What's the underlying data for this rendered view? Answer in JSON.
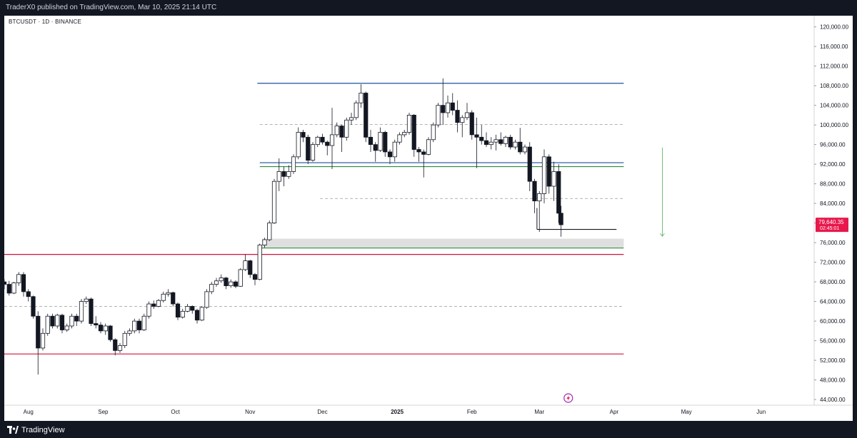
{
  "header": {
    "text": "TraderX0 published on TradingView.com, Mar 10, 2025 21:14 UTC"
  },
  "symbol": "BTCUSDT · 1D · BINANCE",
  "footer": {
    "brand": "TradingView"
  },
  "colors": {
    "blue": "#1e4fa0",
    "green": "#2e8b3c",
    "red": "#d0143c",
    "gray": "#9a9a9a",
    "price_label": "#e8174b"
  },
  "chart_data": {
    "type": "candlestick",
    "y_ticks": [
      "120,000.00",
      "116,000.00",
      "112,000.00",
      "108,000.00",
      "104,000.00",
      "100,000.00",
      "96,000.00",
      "92,000.00",
      "88,000.00",
      "84,000.00",
      "80,000.00",
      "76,000.00",
      "72,000.00",
      "68,000.00",
      "64,000.00",
      "60,000.00",
      "56,000.00",
      "52,000.00",
      "48,000.00",
      "44,000.00"
    ],
    "y_values": [
      120000,
      116000,
      112000,
      108000,
      104000,
      100000,
      96000,
      92000,
      88000,
      84000,
      80000,
      76000,
      72000,
      68000,
      64000,
      60000,
      56000,
      52000,
      48000,
      44000
    ],
    "ylim": [
      42850,
      122280
    ],
    "x_ticks": [
      "Aug",
      "Sep",
      "Oct",
      "Nov",
      "Dec",
      "2025",
      "Feb",
      "Mar",
      "Apr",
      "May",
      "Jun"
    ],
    "x_tick_dates": [
      "2024-08-01",
      "2024-09-01",
      "2024-10-01",
      "2024-11-01",
      "2024-12-01",
      "2025-01-01",
      "2025-02-01",
      "2025-03-01",
      "2025-04-01",
      "2025-05-01",
      "2025-06-01"
    ],
    "xlim": [
      "2024-07-22",
      "2025-06-23"
    ],
    "last_price": {
      "value": "79,640.35",
      "countdown": "02:45:01",
      "y": 79640
    },
    "levels": [
      {
        "name": "resistance-top",
        "y": 108500,
        "from": "2024-11-04",
        "to": "2025-04-05",
        "color": "blue",
        "style": "solid"
      },
      {
        "name": "range-mid-upper",
        "y": 100100,
        "from": "2024-11-05",
        "to": "2025-04-05",
        "color": "gray",
        "style": "dashed"
      },
      {
        "name": "range-bottom",
        "y": 92300,
        "from": "2024-11-05",
        "to": "2025-04-05",
        "color": "blue",
        "style": "solid"
      },
      {
        "name": "range-support",
        "y": 91500,
        "from": "2024-11-05",
        "to": "2025-04-05",
        "color": "green",
        "style": "solid"
      },
      {
        "name": "mid-dashed",
        "y": 85000,
        "from": "2024-11-30",
        "to": "2025-04-05",
        "color": "gray",
        "style": "dashed"
      },
      {
        "name": "low-marker",
        "y": 78700,
        "from": "2025-02-28",
        "to": "2025-04-02",
        "color": "dark",
        "style": "solid"
      },
      {
        "name": "support-green",
        "y": 74900,
        "from": "2024-11-05",
        "to": "2025-04-05",
        "color": "green",
        "style": "solid"
      },
      {
        "name": "red-upper",
        "y": 73600,
        "from": "2024-07-22",
        "to": "2025-04-05",
        "color": "red",
        "style": "solid"
      },
      {
        "name": "dashed-lower",
        "y": 63000,
        "from": "2024-07-22",
        "to": "2025-04-05",
        "color": "gray",
        "style": "dashed"
      },
      {
        "name": "red-lower",
        "y": 53300,
        "from": "2024-07-22",
        "to": "2025-04-05",
        "color": "red",
        "style": "solid"
      }
    ],
    "zone": {
      "y_top": 76800,
      "y_bottom": 75000,
      "from": "2024-11-06",
      "to": "2025-04-05"
    },
    "arrow": {
      "date": "2025-04-21",
      "y_from": 95400,
      "y_to": 77300
    },
    "ohlc": [
      [
        "2024-07-22",
        68000,
        68500,
        66500,
        67500
      ],
      [
        "2024-07-24",
        67500,
        68200,
        65200,
        65700
      ],
      [
        "2024-07-26",
        65700,
        68000,
        65500,
        67800
      ],
      [
        "2024-07-28",
        67800,
        70000,
        67200,
        69500
      ],
      [
        "2024-07-30",
        69500,
        70000,
        65000,
        66000
      ],
      [
        "2024-08-01",
        66000,
        66500,
        64000,
        65000
      ],
      [
        "2024-08-03",
        65000,
        65200,
        60500,
        61000
      ],
      [
        "2024-08-05",
        61000,
        62000,
        49100,
        54500
      ],
      [
        "2024-08-07",
        54500,
        58500,
        54000,
        57500
      ],
      [
        "2024-08-09",
        57500,
        61500,
        57000,
        61000
      ],
      [
        "2024-08-11",
        61000,
        61500,
        58500,
        59000
      ],
      [
        "2024-08-13",
        59000,
        61500,
        58500,
        61200
      ],
      [
        "2024-08-15",
        61200,
        61500,
        57500,
        58200
      ],
      [
        "2024-08-17",
        58200,
        59500,
        57800,
        59000
      ],
      [
        "2024-08-19",
        59000,
        61500,
        58500,
        61000
      ],
      [
        "2024-08-21",
        61000,
        61500,
        59000,
        60000
      ],
      [
        "2024-08-23",
        60000,
        64500,
        59500,
        64000
      ],
      [
        "2024-08-25",
        64000,
        65000,
        63500,
        64500
      ],
      [
        "2024-08-27",
        64500,
        64800,
        59000,
        59500
      ],
      [
        "2024-08-29",
        59500,
        61000,
        58500,
        59200
      ],
      [
        "2024-08-31",
        59200,
        59800,
        57500,
        58000
      ],
      [
        "2024-09-02",
        58000,
        59500,
        57200,
        59000
      ],
      [
        "2024-09-04",
        59000,
        59200,
        55800,
        56200
      ],
      [
        "2024-09-06",
        56200,
        56500,
        53000,
        54000
      ],
      [
        "2024-09-08",
        54000,
        55500,
        53500,
        55000
      ],
      [
        "2024-09-10",
        55000,
        58000,
        54500,
        57500
      ],
      [
        "2024-09-12",
        57500,
        58500,
        57000,
        58000
      ],
      [
        "2024-09-14",
        58000,
        60500,
        57500,
        60000
      ],
      [
        "2024-09-16",
        60000,
        60500,
        57500,
        58200
      ],
      [
        "2024-09-18",
        58200,
        61500,
        58000,
        61000
      ],
      [
        "2024-09-20",
        61000,
        64000,
        60500,
        63500
      ],
      [
        "2024-09-22",
        63500,
        64200,
        62500,
        63000
      ],
      [
        "2024-09-24",
        63000,
        64500,
        62800,
        64200
      ],
      [
        "2024-09-26",
        64200,
        66000,
        63800,
        65500
      ],
      [
        "2024-09-28",
        65500,
        66500,
        65000,
        65800
      ],
      [
        "2024-09-30",
        65800,
        66000,
        63000,
        63500
      ],
      [
        "2024-10-02",
        63500,
        63800,
        60200,
        60800
      ],
      [
        "2024-10-04",
        60800,
        62500,
        60500,
        62000
      ],
      [
        "2024-10-06",
        62000,
        63500,
        61800,
        63000
      ],
      [
        "2024-10-08",
        63000,
        63200,
        61500,
        62200
      ],
      [
        "2024-10-10",
        62200,
        62500,
        59500,
        60200
      ],
      [
        "2024-10-12",
        60200,
        63000,
        60000,
        62800
      ],
      [
        "2024-10-14",
        62800,
        66500,
        62500,
        66000
      ],
      [
        "2024-10-16",
        66000,
        68000,
        65500,
        67500
      ],
      [
        "2024-10-18",
        67500,
        68800,
        67000,
        68200
      ],
      [
        "2024-10-20",
        68200,
        69500,
        67800,
        68800
      ],
      [
        "2024-10-22",
        68800,
        69000,
        66500,
        67200
      ],
      [
        "2024-10-24",
        67200,
        68500,
        66800,
        68000
      ],
      [
        "2024-10-26",
        68000,
        68300,
        66700,
        67100
      ],
      [
        "2024-10-28",
        67100,
        70800,
        67000,
        70500
      ],
      [
        "2024-10-30",
        70500,
        73600,
        70200,
        72300
      ],
      [
        "2024-11-01",
        72300,
        72500,
        68800,
        69500
      ],
      [
        "2024-11-03",
        69500,
        69800,
        67300,
        68500
      ],
      [
        "2024-11-05",
        68500,
        75800,
        68300,
        75500
      ],
      [
        "2024-11-07",
        75500,
        77000,
        75000,
        76600
      ],
      [
        "2024-11-09",
        76600,
        80500,
        76300,
        80000
      ],
      [
        "2024-11-11",
        80000,
        89000,
        79800,
        88500
      ],
      [
        "2024-11-13",
        88500,
        93200,
        86500,
        90500
      ],
      [
        "2024-11-15",
        90500,
        91500,
        87500,
        89500
      ],
      [
        "2024-11-17",
        89500,
        91800,
        89000,
        90500
      ],
      [
        "2024-11-19",
        90500,
        94000,
        90000,
        93500
      ],
      [
        "2024-11-21",
        93500,
        99500,
        93000,
        98500
      ],
      [
        "2024-11-23",
        98500,
        99000,
        96500,
        97500
      ],
      [
        "2024-11-25",
        97500,
        98000,
        92000,
        92800
      ],
      [
        "2024-11-27",
        92800,
        96500,
        92500,
        96000
      ],
      [
        "2024-11-29",
        96000,
        97800,
        95500,
        97500
      ],
      [
        "2024-12-01",
        97500,
        98200,
        96000,
        96500
      ],
      [
        "2024-12-03",
        96500,
        96800,
        93800,
        95800
      ],
      [
        "2024-12-05",
        95800,
        103500,
        91000,
        98000
      ],
      [
        "2024-12-07",
        98000,
        100500,
        97500,
        99800
      ],
      [
        "2024-12-09",
        99800,
        100000,
        94500,
        97500
      ],
      [
        "2024-12-11",
        97500,
        101500,
        96800,
        101000
      ],
      [
        "2024-12-13",
        101000,
        102500,
        100000,
        101500
      ],
      [
        "2024-12-15",
        101500,
        105000,
        101000,
        104500
      ],
      [
        "2024-12-17",
        104500,
        108300,
        103500,
        106500
      ],
      [
        "2024-12-19",
        106500,
        106800,
        96500,
        97500
      ],
      [
        "2024-12-21",
        97500,
        99000,
        94500,
        96000
      ],
      [
        "2024-12-23",
        96000,
        96500,
        92500,
        94800
      ],
      [
        "2024-12-25",
        94800,
        99500,
        94500,
        98500
      ],
      [
        "2024-12-27",
        98500,
        98800,
        93500,
        94500
      ],
      [
        "2024-12-29",
        94500,
        95000,
        92000,
        93500
      ],
      [
        "2024-12-31",
        93500,
        97000,
        92500,
        96500
      ],
      [
        "2025-01-02",
        96500,
        98500,
        96000,
        98000
      ],
      [
        "2025-01-04",
        98000,
        99000,
        97500,
        98500
      ],
      [
        "2025-01-06",
        98500,
        102500,
        98000,
        102000
      ],
      [
        "2025-01-08",
        102000,
        102200,
        93500,
        95000
      ],
      [
        "2025-01-10",
        95000,
        95500,
        92500,
        94500
      ],
      [
        "2025-01-12",
        94500,
        95000,
        89300,
        94000
      ],
      [
        "2025-01-14",
        94000,
        97500,
        93800,
        97000
      ],
      [
        "2025-01-16",
        97000,
        100500,
        96500,
        100000
      ],
      [
        "2025-01-18",
        100000,
        104500,
        99500,
        104000
      ],
      [
        "2025-01-20",
        104000,
        109500,
        100000,
        102500
      ],
      [
        "2025-01-22",
        102500,
        106000,
        101500,
        104500
      ],
      [
        "2025-01-24",
        104500,
        106500,
        102000,
        103000
      ],
      [
        "2025-01-26",
        103000,
        105000,
        98500,
        100500
      ],
      [
        "2025-01-28",
        100500,
        102000,
        97500,
        101500
      ],
      [
        "2025-01-30",
        101500,
        104500,
        101000,
        102500
      ],
      [
        "2025-02-01",
        102500,
        103000,
        97000,
        98000
      ],
      [
        "2025-02-03",
        98000,
        101500,
        91200,
        97500
      ],
      [
        "2025-02-05",
        97500,
        100000,
        96000,
        96800
      ],
      [
        "2025-02-07",
        96800,
        98500,
        95500,
        96000
      ],
      [
        "2025-02-09",
        96000,
        97500,
        95000,
        96500
      ],
      [
        "2025-02-11",
        96500,
        98000,
        94800,
        97000
      ],
      [
        "2025-02-13",
        97000,
        98500,
        95800,
        96200
      ],
      [
        "2025-02-15",
        96200,
        97800,
        95500,
        97500
      ],
      [
        "2025-02-17",
        97500,
        98000,
        95000,
        95500
      ],
      [
        "2025-02-19",
        95500,
        97000,
        95000,
        96500
      ],
      [
        "2025-02-21",
        96500,
        99400,
        94000,
        94500
      ],
      [
        "2025-02-23",
        94500,
        96000,
        94000,
        95500
      ],
      [
        "2025-02-25",
        95500,
        96500,
        86500,
        88500
      ],
      [
        "2025-02-27",
        88500,
        89000,
        82000,
        84500
      ],
      [
        "2025-03-01",
        84500,
        86500,
        78200,
        86000
      ],
      [
        "2025-03-03",
        86000,
        95000,
        84000,
        93500
      ],
      [
        "2025-03-05",
        93500,
        94000,
        86000,
        87500
      ],
      [
        "2025-03-07",
        87500,
        92500,
        84500,
        90500
      ],
      [
        "2025-03-09",
        90500,
        92000,
        80000,
        82000
      ],
      [
        "2025-03-10",
        82000,
        83500,
        77200,
        79640
      ]
    ]
  }
}
